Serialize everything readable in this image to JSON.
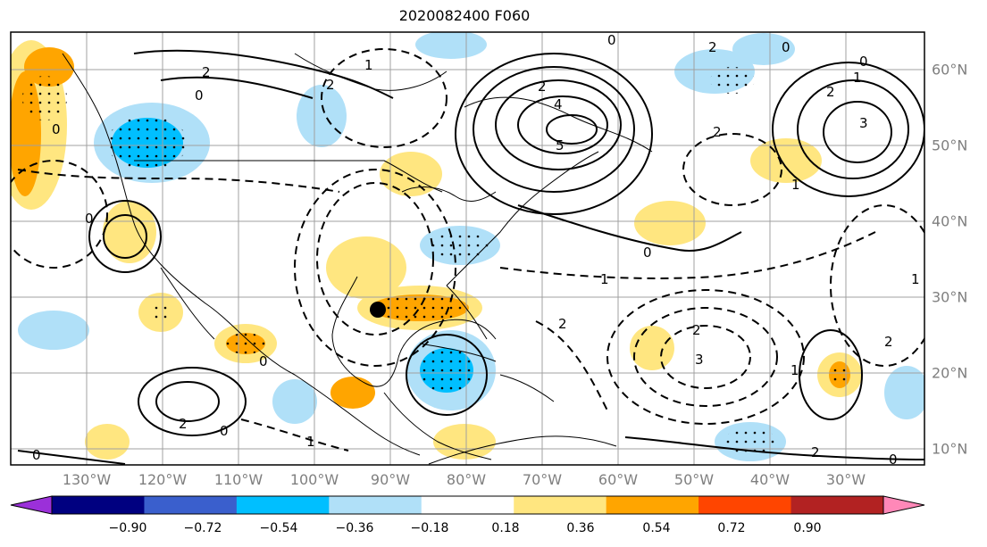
{
  "title": "2020082400 F060",
  "map": {
    "lon_labels": [
      "130°W",
      "120°W",
      "110°W",
      "100°W",
      "90°W",
      "80°W",
      "70°W",
      "60°W",
      "50°W",
      "40°W",
      "30°W"
    ],
    "lat_labels": [
      "60°N",
      "50°N",
      "40°N",
      "30°N",
      "20°N",
      "10°N"
    ],
    "contour_labels": [
      "0",
      "2",
      "0",
      "2",
      "0",
      "1",
      "2",
      "4",
      "5",
      "0",
      "2",
      "1",
      "2",
      "3",
      "0",
      "0",
      "1",
      "2",
      "1",
      "0",
      "0",
      "2",
      "2",
      "3",
      "1",
      "2",
      "0",
      "1",
      "2",
      "0",
      "2",
      "1",
      "0"
    ],
    "marker": "storm-center-dot"
  },
  "colorbar": {
    "ticks": [
      "−0.90",
      "−0.72",
      "−0.54",
      "−0.36",
      "−0.18",
      "0.18",
      "0.36",
      "0.54",
      "0.72",
      "0.90"
    ],
    "colors": [
      "#9b30d9",
      "#000080",
      "#3a5fcd",
      "#00bfff",
      "#b0e0f8",
      "#ffffff",
      "#ffe680",
      "#ffa500",
      "#ff4500",
      "#b22222",
      "#ff88b8"
    ]
  }
}
